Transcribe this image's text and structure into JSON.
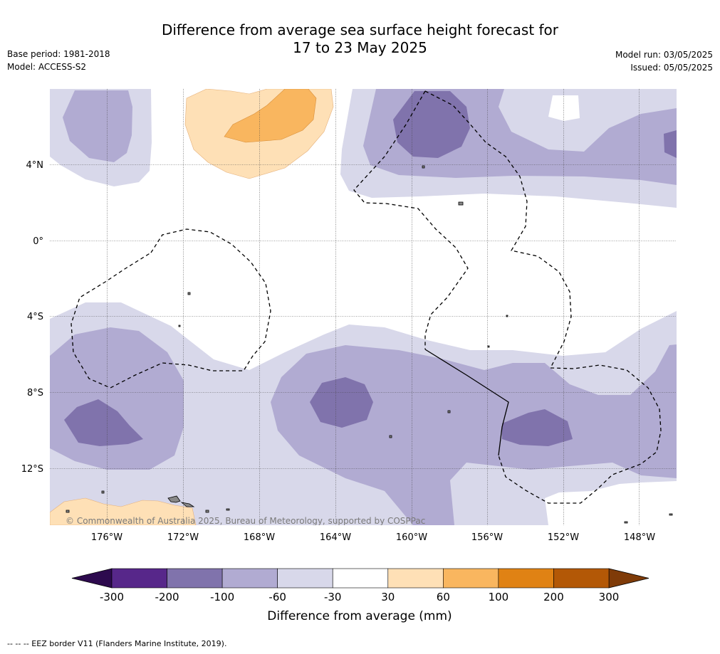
{
  "title_line1": "Difference from average sea surface height forecast for",
  "title_line2": "17 to 23 May 2025",
  "base_period": "Base period: 1981-2018",
  "model": "Model: ACCESS-S2",
  "model_run": "Model run: 03/05/2025",
  "issued": "Issued: 05/05/2025",
  "copyright": "© Commonwealth of Australia 2025, Bureau of Meteorology, supported by COSPPac",
  "footnote": "-- -- -- EEZ border V11 (Flanders Marine Institute, 2019).",
  "lat_labels": [
    "4°N",
    "0°",
    "4°S",
    "8°S",
    "12°S"
  ],
  "lon_labels": [
    "176°W",
    "172°W",
    "168°W",
    "164°W",
    "160°W",
    "156°W",
    "152°W",
    "148°W"
  ],
  "colorbar": {
    "title": "Difference from average (mm)",
    "ticks": [
      "-300",
      "-200",
      "-100",
      "-60",
      "-30",
      "30",
      "60",
      "100",
      "200",
      "300"
    ],
    "colors": [
      "#2d0a4e",
      "#57278a",
      "#8073ac",
      "#b1abd2",
      "#d8d8ea",
      "#ffffff",
      "#fee0b6",
      "#f9b65f",
      "#e08214",
      "#b35806",
      "#7f3b08"
    ]
  },
  "level_colors": {
    "lt_-100": "#8073ac",
    "-100_to_-60": "#b1abd2",
    "-60_to_-30": "#d8d8ea",
    "30_to_60": "#fee0b6",
    "60_to_100": "#f9b65f"
  }
}
